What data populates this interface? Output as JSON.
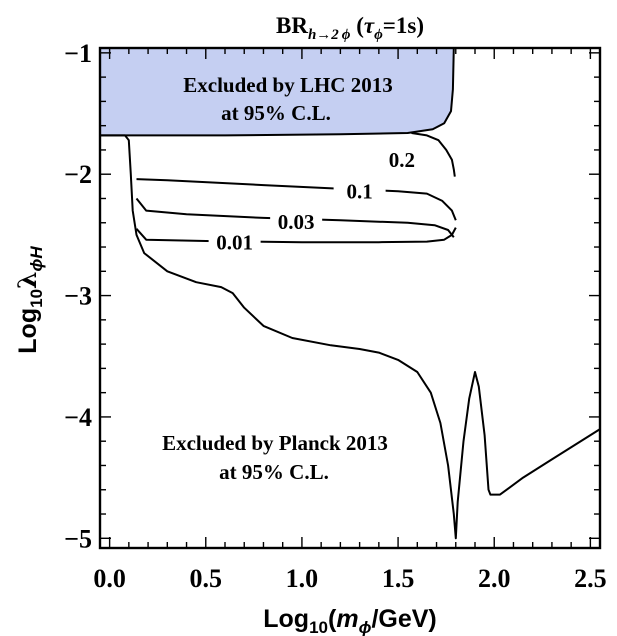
{
  "chart_data": {
    "type": "line",
    "title": "BR",
    "title_sub": "h→2 ϕ",
    "title_tail_open": " (",
    "title_tau": "τ",
    "title_tau_sub": "ϕ",
    "title_tail_close": "=1s)",
    "xlabel_prefix": "Log",
    "xlabel_sub": "10",
    "xlabel_open": "(",
    "xlabel_italic": "m",
    "xlabel_italic_sub": "ϕ",
    "xlabel_tail": "/GeV)",
    "ylabel_prefix": "Log",
    "ylabel_sub": "10",
    "ylabel_lambda": "λ",
    "ylabel_lambda_sub": "ϕH",
    "xlim": [
      -0.05,
      2.55
    ],
    "ylim": [
      -5.08,
      -0.96
    ],
    "x_ticks": [
      {
        "value": 0.0,
        "label": "0.0"
      },
      {
        "value": 0.5,
        "label": "0.5"
      },
      {
        "value": 1.0,
        "label": "1.0"
      },
      {
        "value": 1.5,
        "label": "1.5"
      },
      {
        "value": 2.0,
        "label": "2.0"
      },
      {
        "value": 2.5,
        "label": "2.5"
      }
    ],
    "y_ticks": [
      {
        "value": -1,
        "label": "−1"
      },
      {
        "value": -2,
        "label": "−2"
      },
      {
        "value": -3,
        "label": "−3"
      },
      {
        "value": -4,
        "label": "−4"
      },
      {
        "value": -5,
        "label": "−5"
      }
    ],
    "lhc_region": {
      "fill_color": "#c5cff2",
      "label_line1": "Excluded by LHC 2013",
      "label_line2": "at 95% C.L.",
      "boundary": [
        [
          -0.05,
          -1.68
        ],
        [
          0.6,
          -1.68
        ],
        [
          1.2,
          -1.67
        ],
        [
          1.55,
          -1.66
        ],
        [
          1.68,
          -1.63
        ],
        [
          1.74,
          -1.58
        ],
        [
          1.775,
          -1.48
        ],
        [
          1.785,
          -1.3
        ],
        [
          1.79,
          -0.96
        ]
      ]
    },
    "planck_region": {
      "label_line1": "Excluded by Planck 2013",
      "label_line2": "at 95% C.L.",
      "boundary": [
        [
          -0.05,
          -1.68
        ],
        [
          0.08,
          -1.68
        ],
        [
          0.1,
          -1.72
        ],
        [
          0.11,
          -2.0
        ],
        [
          0.12,
          -2.3
        ],
        [
          0.14,
          -2.5
        ],
        [
          0.18,
          -2.65
        ],
        [
          0.3,
          -2.8
        ],
        [
          0.45,
          -2.89
        ],
        [
          0.58,
          -2.93
        ],
        [
          0.64,
          -2.98
        ],
        [
          0.7,
          -3.1
        ],
        [
          0.8,
          -3.25
        ],
        [
          0.95,
          -3.35
        ],
        [
          1.15,
          -3.41
        ],
        [
          1.3,
          -3.44
        ],
        [
          1.4,
          -3.47
        ],
        [
          1.5,
          -3.53
        ],
        [
          1.6,
          -3.63
        ],
        [
          1.67,
          -3.8
        ],
        [
          1.72,
          -4.05
        ],
        [
          1.76,
          -4.4
        ],
        [
          1.79,
          -4.8
        ],
        [
          1.8,
          -5.0
        ],
        [
          1.81,
          -4.7
        ],
        [
          1.84,
          -4.2
        ],
        [
          1.87,
          -3.85
        ],
        [
          1.9,
          -3.63
        ],
        [
          1.92,
          -3.75
        ],
        [
          1.95,
          -4.15
        ],
        [
          1.97,
          -4.6
        ],
        [
          1.98,
          -4.64
        ],
        [
          2.03,
          -4.64
        ],
        [
          2.15,
          -4.5
        ],
        [
          2.3,
          -4.35
        ],
        [
          2.55,
          -4.1
        ]
      ]
    },
    "contours": [
      {
        "label": "0.2",
        "label_at": [
          1.52,
          -1.94
        ],
        "points": [
          [
            1.57,
            -1.66
          ],
          [
            1.65,
            -1.68
          ],
          [
            1.71,
            -1.72
          ],
          [
            1.75,
            -1.8
          ],
          [
            1.78,
            -1.88
          ],
          [
            1.79,
            -1.96
          ],
          [
            1.795,
            -2.02
          ]
        ]
      },
      {
        "label": "0.1",
        "label_at": [
          1.3,
          -2.2
        ],
        "points": [
          [
            0.14,
            -2.04
          ],
          [
            0.3,
            -2.05
          ],
          [
            0.8,
            -2.09
          ],
          [
            1.2,
            -2.12
          ],
          [
            1.5,
            -2.14
          ],
          [
            1.65,
            -2.16
          ],
          [
            1.73,
            -2.22
          ],
          [
            1.78,
            -2.3
          ],
          [
            1.8,
            -2.38
          ]
        ]
      },
      {
        "label": "0.03",
        "label_at": [
          0.97,
          -2.45
        ],
        "points": [
          [
            0.14,
            -2.2
          ],
          [
            0.19,
            -2.3
          ],
          [
            0.4,
            -2.33
          ],
          [
            0.8,
            -2.36
          ],
          [
            1.2,
            -2.38
          ],
          [
            1.55,
            -2.4
          ],
          [
            1.69,
            -2.42
          ],
          [
            1.76,
            -2.46
          ],
          [
            1.79,
            -2.52
          ]
        ]
      },
      {
        "label": "0.01",
        "label_at": [
          0.65,
          -2.62
        ],
        "points": [
          [
            0.14,
            -2.45
          ],
          [
            0.19,
            -2.54
          ],
          [
            0.5,
            -2.55
          ],
          [
            1.0,
            -2.56
          ],
          [
            1.4,
            -2.56
          ],
          [
            1.65,
            -2.555
          ],
          [
            1.74,
            -2.54
          ],
          [
            1.78,
            -2.5
          ],
          [
            1.8,
            -2.44
          ]
        ]
      }
    ]
  }
}
